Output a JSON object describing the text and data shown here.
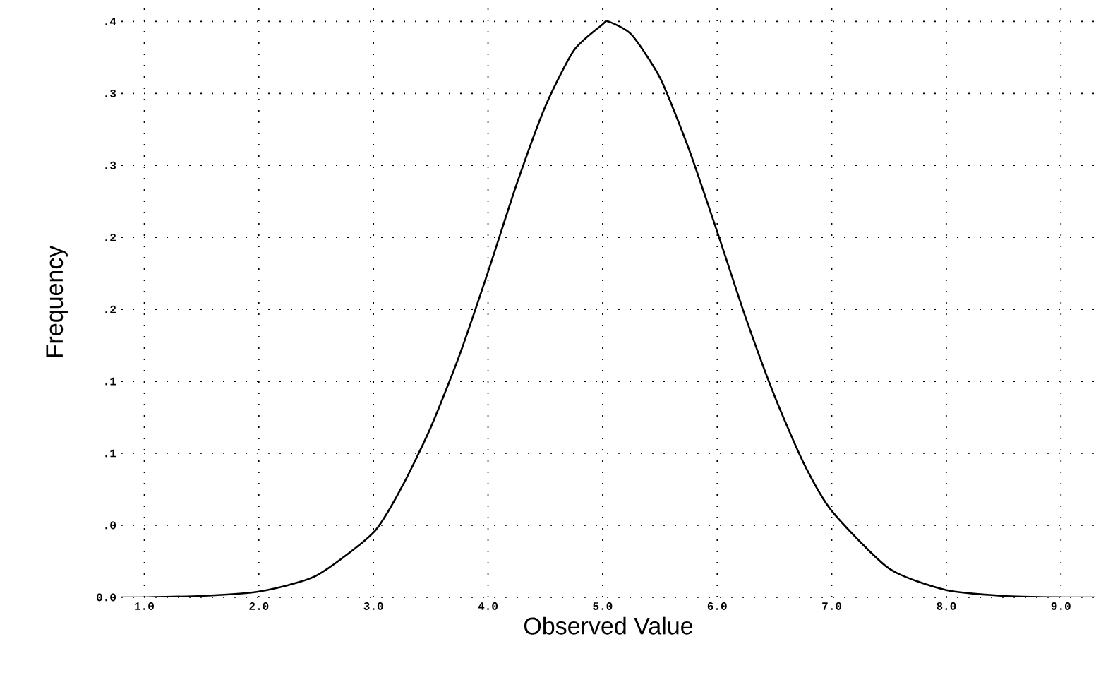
{
  "chart_data": {
    "type": "line",
    "xlabel": "Observed Value",
    "ylabel": "Frequency",
    "x": [
      0.8,
      1.0,
      1.5,
      2.0,
      2.5,
      3.0,
      3.25,
      3.5,
      3.75,
      4.0,
      4.25,
      4.5,
      4.75,
      5.0,
      5.05,
      5.25,
      5.5,
      5.75,
      6.0,
      6.25,
      6.5,
      6.75,
      7.0,
      7.5,
      8.0,
      8.5,
      9.0,
      9.3
    ],
    "series": [
      {
        "color": "#000000",
        "values": [
          0.0,
          0.0,
          0.001,
          0.004,
          0.015,
          0.045,
          0.077,
          0.118,
          0.168,
          0.226,
          0.287,
          0.341,
          0.38,
          0.398,
          0.4,
          0.391,
          0.361,
          0.312,
          0.254,
          0.194,
          0.14,
          0.094,
          0.06,
          0.02,
          0.005,
          0.001,
          0.0,
          0.0
        ]
      }
    ],
    "xlim": [
      0.8,
      9.3
    ],
    "ylim": [
      0,
      0.41
    ],
    "xticks": [
      {
        "value": 1,
        "label": "1.0"
      },
      {
        "value": 2,
        "label": "2.0"
      },
      {
        "value": 3,
        "label": "3.0"
      },
      {
        "value": 4,
        "label": "4.0"
      },
      {
        "value": 5,
        "label": "5.0"
      },
      {
        "value": 6,
        "label": "6.0"
      },
      {
        "value": 7,
        "label": "7.0"
      },
      {
        "value": 8,
        "label": "8.0"
      },
      {
        "value": 9,
        "label": "9.0"
      }
    ],
    "yticks": [
      {
        "value": 0,
        "label": "0.0"
      },
      {
        "value": 0.05,
        "label": ".0"
      },
      {
        "value": 0.1,
        "label": ".1"
      },
      {
        "value": 0.15,
        "label": ".1"
      },
      {
        "value": 0.2,
        "label": ".2"
      },
      {
        "value": 0.25,
        "label": ".2"
      },
      {
        "value": 0.3,
        "label": ".3"
      },
      {
        "value": 0.35,
        "label": ".3"
      },
      {
        "value": 0.4,
        "label": ".4"
      }
    ],
    "grid": true,
    "marker": "none",
    "line_style": "solid"
  }
}
